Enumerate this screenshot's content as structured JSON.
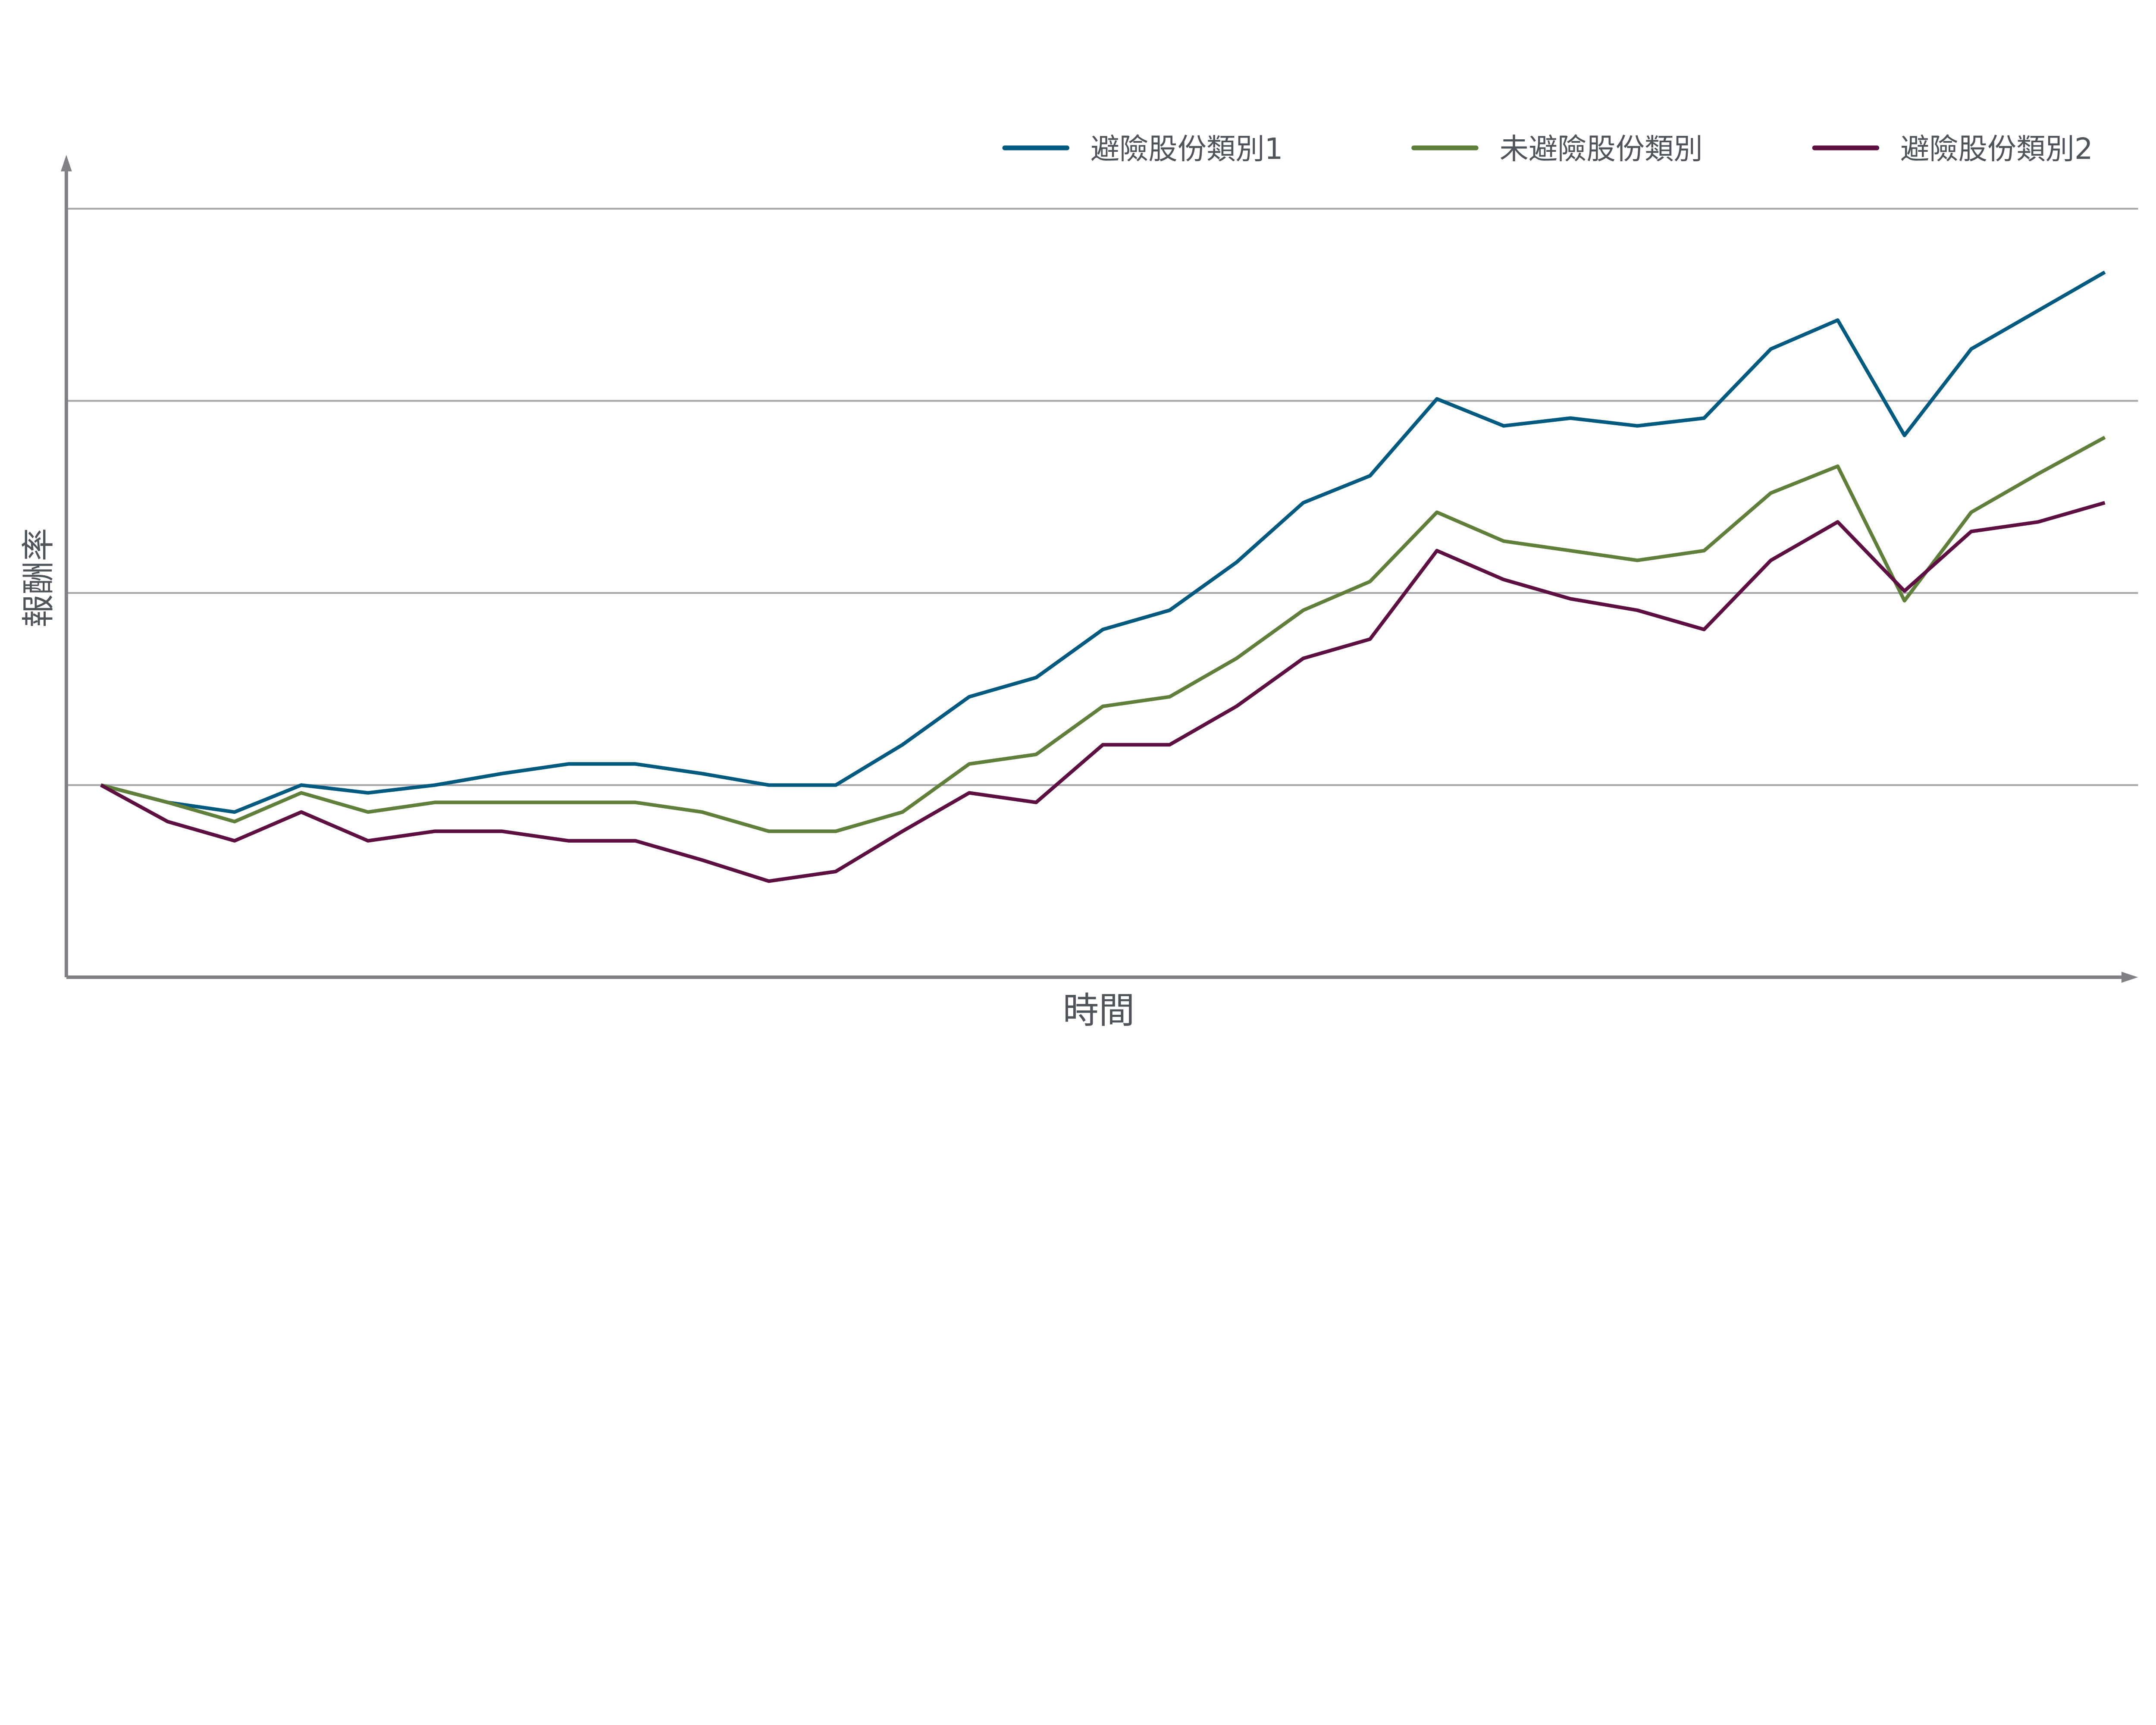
{
  "chart_data": {
    "type": "line",
    "title": "",
    "xlabel": "時間",
    "ylabel": "報酬率",
    "x": [
      0,
      1,
      2,
      3,
      4,
      5,
      6,
      7,
      8,
      9,
      10,
      11,
      12,
      13,
      14,
      15,
      16,
      17,
      18,
      19,
      20,
      21,
      22,
      23,
      24,
      25,
      26,
      27,
      28,
      29,
      30
    ],
    "xlim": [
      -0.5,
      30.9
    ],
    "ylim": [
      0,
      4.26
    ],
    "gridlines_y": [
      1,
      2,
      3,
      4
    ],
    "grid": true,
    "tick_labels_shown": false,
    "legend_position": "top-right",
    "series": [
      {
        "name": "避險股份類別1",
        "color": "#005a80",
        "values": [
          1.0,
          0.91,
          0.86,
          1.0,
          0.96,
          1.0,
          1.06,
          1.11,
          1.11,
          1.06,
          1.0,
          1.0,
          1.21,
          1.46,
          1.56,
          1.81,
          1.91,
          2.16,
          2.47,
          2.61,
          3.01,
          2.87,
          2.91,
          2.87,
          2.91,
          3.27,
          3.42,
          2.82,
          3.27,
          3.47,
          3.67
        ]
      },
      {
        "name": "未避險股份類別",
        "color": "#5f7f3b",
        "values": [
          1.0,
          0.91,
          0.81,
          0.96,
          0.86,
          0.91,
          0.91,
          0.91,
          0.91,
          0.86,
          0.76,
          0.76,
          0.86,
          1.11,
          1.16,
          1.41,
          1.46,
          1.66,
          1.91,
          2.06,
          2.42,
          2.27,
          2.22,
          2.17,
          2.22,
          2.52,
          2.66,
          1.96,
          2.42,
          2.62,
          2.81
        ]
      },
      {
        "name": "避險股份類別2",
        "color": "#5e0f42",
        "values": [
          1.0,
          0.81,
          0.71,
          0.86,
          0.71,
          0.76,
          0.76,
          0.71,
          0.71,
          0.61,
          0.5,
          0.55,
          0.76,
          0.96,
          0.91,
          1.21,
          1.21,
          1.41,
          1.66,
          1.76,
          2.22,
          2.07,
          1.97,
          1.91,
          1.81,
          2.17,
          2.37,
          2.01,
          2.32,
          2.37,
          2.47
        ]
      }
    ]
  },
  "colors": {
    "axis": "#808087",
    "grid": "#a6a6ab",
    "text": "#4f535a"
  }
}
